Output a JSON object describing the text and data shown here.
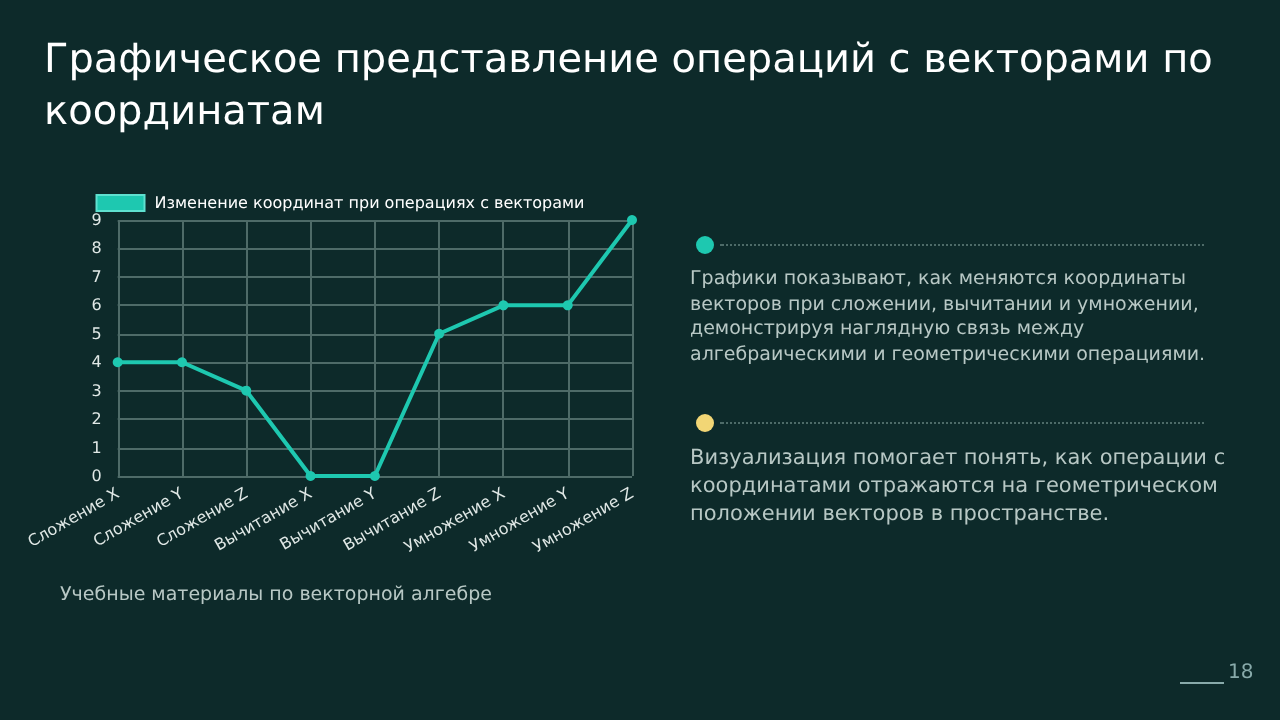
{
  "chart_data": {
    "type": "line",
    "title": "Графическое представление операций с векторами по координатам",
    "categories": [
      "Сложение X",
      "Сложение Y",
      "Сложение Z",
      "Вычитание X",
      "Вычитание Y",
      "Вычитание Z",
      "Умножение X",
      "Умножение Y",
      "Умножение Z"
    ],
    "series": [
      {
        "name": "Изменение координат при операциях с векторами",
        "color": "#1ec8b0",
        "values": [
          4,
          4,
          3,
          0,
          0,
          5,
          6,
          6,
          9
        ]
      }
    ],
    "ylim": [
      0,
      9
    ],
    "yticks": [
      0,
      1,
      2,
      3,
      4,
      5,
      6,
      7,
      8,
      9
    ],
    "grid": true,
    "legend": "top",
    "marker": "circle",
    "line_style": "solid",
    "annotations": [
      "Графики показывают, как меняются координаты векторов при сложении, вычитании и умножении, демонстрируя наглядную связь между алгебраическими и геометрическими операциями.",
      "Визуализация помогает понять, как операции с координатами отражаются на геометрическом положении векторов в пространстве.",
      "Учебные материалы по векторной алгебре",
      "18"
    ]
  }
}
